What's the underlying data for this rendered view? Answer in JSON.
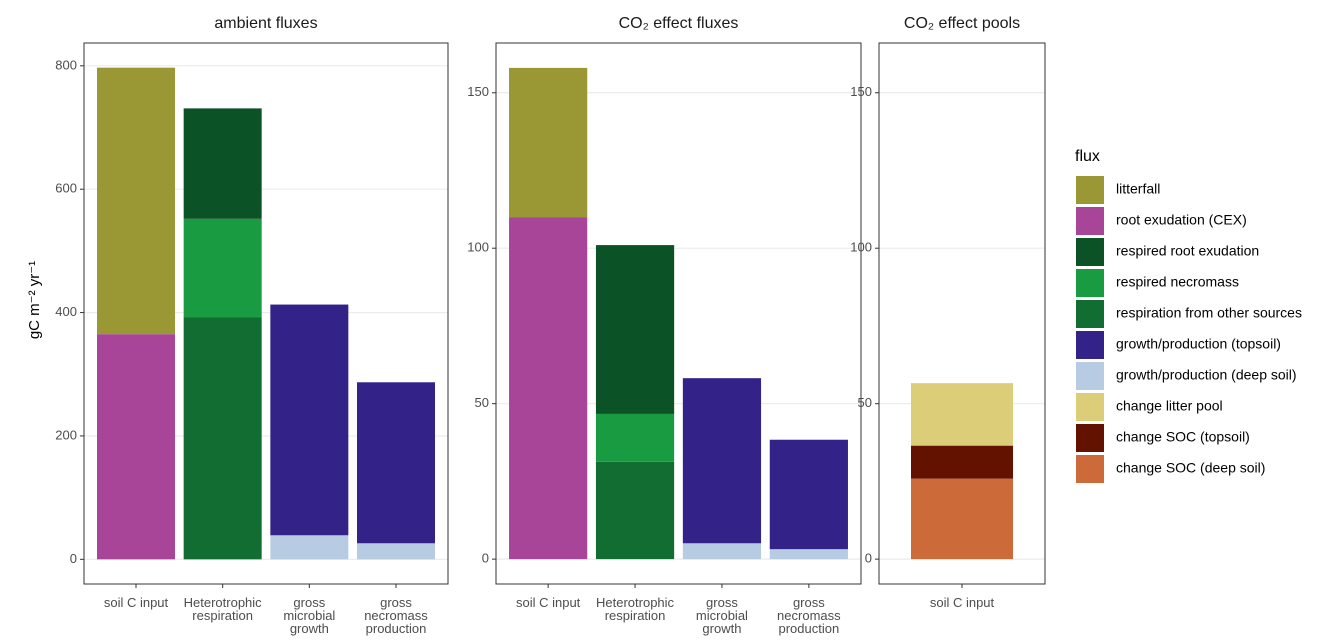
{
  "legend": {
    "title": "flux"
  },
  "ylabel": "gC m⁻² yr⁻¹",
  "chart_data": [
    {
      "type": "stacked-bar",
      "title": "ambient fluxes",
      "categories": [
        "soil C input",
        "Heterotrophic\nrespiration",
        "gross\nmicrobial\ngrowth",
        "gross\nnecromass\nproduction"
      ],
      "ylim": [
        -40,
        837
      ],
      "yticks": [
        0,
        200,
        400,
        600,
        800
      ],
      "grid": true,
      "series": [
        {
          "name": "litterfall",
          "color": "#9a9735",
          "values": [
            432,
            null,
            null,
            null
          ]
        },
        {
          "name": "root exudation (CEX)",
          "color": "#a84599",
          "values": [
            365,
            null,
            null,
            null
          ]
        },
        {
          "name": "respired root exudation",
          "color": "#0b5226",
          "values": [
            null,
            179,
            null,
            null
          ]
        },
        {
          "name": "respired necromass",
          "color": "#189b41",
          "values": [
            null,
            160,
            null,
            null
          ]
        },
        {
          "name": "respiration from other sources",
          "color": "#116d31",
          "values": [
            null,
            392,
            null,
            null
          ]
        },
        {
          "name": "growth/production (topsoil)",
          "color": "#332287",
          "values": [
            null,
            null,
            374,
            261
          ]
        },
        {
          "name": "growth/production (deep soil)",
          "color": "#b7cce2",
          "values": [
            null,
            null,
            39,
            26
          ]
        }
      ]
    },
    {
      "type": "stacked-bar",
      "title": "CO₂ effect fluxes",
      "categories": [
        "soil C input",
        "Heterotrophic\nrespiration",
        "gross\nmicrobial\ngrowth",
        "gross\nnecromass\nproduction"
      ],
      "ylim": [
        -8,
        166
      ],
      "yticks": [
        0,
        50,
        100,
        150
      ],
      "grid": true,
      "series": [
        {
          "name": "litterfall",
          "color": "#9a9735",
          "values": [
            48,
            null,
            null,
            null
          ]
        },
        {
          "name": "root exudation (CEX)",
          "color": "#a84599",
          "values": [
            110,
            null,
            null,
            null
          ]
        },
        {
          "name": "respired root exudation",
          "color": "#0b5226",
          "values": [
            null,
            54.3,
            null,
            null
          ]
        },
        {
          "name": "respired necromass",
          "color": "#189b41",
          "values": [
            null,
            15.4,
            null,
            null
          ]
        },
        {
          "name": "respiration from other sources",
          "color": "#116d31",
          "values": [
            null,
            31.3,
            null,
            null
          ]
        },
        {
          "name": "growth/production (topsoil)",
          "color": "#332287",
          "values": [
            null,
            null,
            53.1,
            35.2
          ]
        },
        {
          "name": "growth/production (deep soil)",
          "color": "#b7cce2",
          "values": [
            null,
            null,
            5.1,
            3.2
          ]
        }
      ]
    },
    {
      "type": "stacked-bar",
      "title": "CO₂ effect pools",
      "categories": [
        "soil C input"
      ],
      "ylim": [
        -8,
        166
      ],
      "yticks": [
        0,
        50,
        100,
        150
      ],
      "grid": true,
      "series": [
        {
          "name": "change litter pool",
          "color": "#dccd78",
          "values": [
            20.1
          ]
        },
        {
          "name": "change SOC (topsoil)",
          "color": "#641200",
          "values": [
            10.6
          ]
        },
        {
          "name": "change SOC (deep soil)",
          "color": "#cd6a3a",
          "values": [
            25.9
          ]
        }
      ]
    }
  ]
}
